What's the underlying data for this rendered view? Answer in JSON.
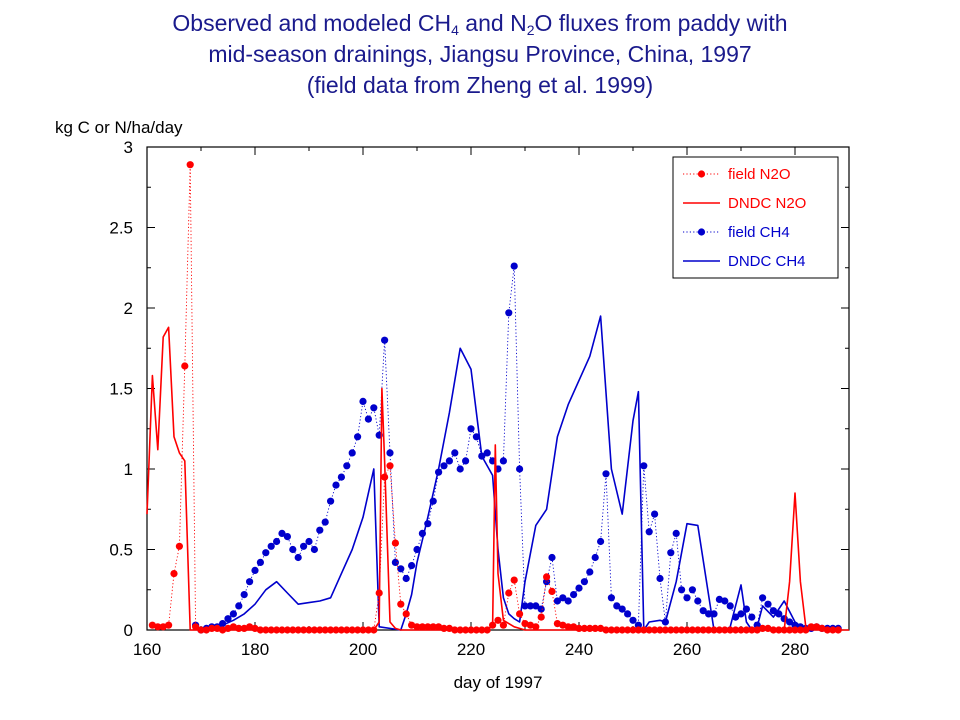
{
  "title": {
    "line1_pre": "Observed and modeled CH",
    "line1_sub1": "4",
    "line1_mid": " and N",
    "line1_sub2": "2",
    "line1_post": "O fluxes from paddy with",
    "line2": "mid-season drainings, Jiangsu Province, China, 1997",
    "line3": "(field data from Zheng et al. 1999)"
  },
  "chart_data": {
    "type": "line",
    "ylabel": "kg C or N/ha/day",
    "xlabel": "day of 1997",
    "xlim": [
      160,
      290
    ],
    "ylim": [
      0,
      3
    ],
    "xticks": [
      160,
      180,
      200,
      220,
      240,
      260,
      280
    ],
    "yticks": [
      0,
      0.5,
      1,
      1.5,
      2,
      2.5,
      3
    ],
    "ytick_labels": [
      "0",
      "0.5",
      "1",
      "1.5",
      "2",
      "2.5",
      "3"
    ],
    "legend_position": "top-right",
    "colors": {
      "n2o": "#ff0000",
      "ch4": "#0000cc",
      "title": "#1a1a8c"
    },
    "series": [
      {
        "name": "field N2O",
        "style": "dotted-markers",
        "x": [
          161,
          162,
          163,
          164,
          165,
          166,
          167,
          168,
          169,
          170,
          171,
          172,
          173,
          174,
          175,
          176,
          177,
          178,
          179,
          180,
          181,
          182,
          183,
          184,
          185,
          186,
          187,
          188,
          189,
          190,
          191,
          192,
          193,
          194,
          195,
          196,
          197,
          198,
          199,
          200,
          201,
          202,
          203,
          204,
          205,
          206,
          207,
          208,
          209,
          210,
          211,
          212,
          213,
          214,
          215,
          216,
          217,
          218,
          219,
          220,
          221,
          222,
          223,
          224,
          225,
          226,
          227,
          228,
          229,
          230,
          231,
          232,
          233,
          234,
          235,
          236,
          237,
          238,
          239,
          240,
          241,
          242,
          243,
          244,
          245,
          246,
          247,
          248,
          249,
          250,
          251,
          252,
          253,
          254,
          255,
          256,
          257,
          258,
          259,
          260,
          261,
          262,
          263,
          264,
          265,
          266,
          267,
          268,
          269,
          270,
          271,
          272,
          273,
          274,
          275,
          276,
          277,
          278,
          279,
          280,
          281,
          282,
          283,
          284,
          285,
          286,
          287,
          288
        ],
        "y": [
          0.03,
          0.02,
          0.02,
          0.03,
          0.35,
          0.52,
          1.64,
          2.89,
          0.02,
          0.0,
          0.0,
          0.01,
          0.01,
          0.0,
          0.01,
          0.02,
          0.01,
          0.01,
          0.02,
          0.01,
          0.0,
          0.0,
          0.0,
          0.0,
          0.0,
          0.0,
          0.0,
          0.0,
          0.0,
          0.0,
          0.0,
          0.0,
          0.0,
          0.0,
          0.0,
          0.0,
          0.0,
          0.0,
          0.0,
          0.0,
          0.0,
          0.0,
          0.23,
          0.95,
          1.02,
          0.54,
          0.16,
          0.1,
          0.03,
          0.02,
          0.02,
          0.02,
          0.02,
          0.02,
          0.01,
          0.01,
          0.0,
          0.0,
          0.0,
          0.0,
          0.0,
          0.0,
          0.0,
          0.03,
          0.06,
          0.03,
          0.23,
          0.31,
          0.1,
          0.04,
          0.03,
          0.02,
          0.08,
          0.33,
          0.24,
          0.04,
          0.03,
          0.02,
          0.02,
          0.01,
          0.01,
          0.01,
          0.01,
          0.01,
          0.0,
          0.0,
          0.0,
          0.0,
          0.0,
          0.0,
          0.0,
          0.0,
          0.0,
          0.0,
          0.0,
          0.0,
          0.0,
          0.0,
          0.0,
          0.0,
          0.0,
          0.0,
          0.0,
          0.0,
          0.0,
          0.0,
          0.0,
          0.0,
          0.0,
          0.0,
          0.0,
          0.0,
          0.0,
          0.01,
          0.01,
          0.0,
          0.0,
          0.0,
          0.0,
          0.0,
          0.0,
          0.0,
          0.02,
          0.02,
          0.01,
          0.0,
          0.0,
          0.0
        ]
      },
      {
        "name": "DNDC N2O",
        "style": "solid",
        "x": [
          160,
          161,
          162,
          163,
          164,
          165,
          166,
          167,
          168,
          169,
          170,
          200,
          202,
          203,
          203.5,
          204,
          205,
          206,
          207,
          222,
          223,
          224,
          224.5,
          225,
          226,
          227,
          228,
          229,
          230,
          231,
          278,
          279,
          280,
          281,
          282,
          283,
          284,
          290
        ],
        "y": [
          0.72,
          1.58,
          1.12,
          1.82,
          1.88,
          1.2,
          1.1,
          1.05,
          0.0,
          0.0,
          0.0,
          0.0,
          0.0,
          0.05,
          1.5,
          1.05,
          0.05,
          0.01,
          0.0,
          0.0,
          0.01,
          0.02,
          1.15,
          0.35,
          0.06,
          0.04,
          0.02,
          0.01,
          0.0,
          0.0,
          0.0,
          0.3,
          0.85,
          0.3,
          0.02,
          0.0,
          0.0,
          0.0
        ]
      },
      {
        "name": "field CH4",
        "style": "dotted-markers",
        "x": [
          169,
          170,
          171,
          172,
          173,
          174,
          175,
          176,
          177,
          178,
          179,
          180,
          181,
          182,
          183,
          184,
          185,
          186,
          187,
          188,
          189,
          190,
          191,
          192,
          193,
          194,
          195,
          196,
          197,
          198,
          199,
          200,
          201,
          202,
          203,
          204,
          205,
          206,
          207,
          208,
          209,
          210,
          211,
          212,
          213,
          214,
          215,
          216,
          217,
          218,
          219,
          220,
          221,
          222,
          223,
          224,
          225,
          226,
          227,
          228,
          229,
          230,
          231,
          232,
          233,
          234,
          235,
          236,
          237,
          238,
          239,
          240,
          241,
          242,
          243,
          244,
          245,
          246,
          247,
          248,
          249,
          250,
          251,
          252,
          253,
          254,
          255,
          256,
          257,
          258,
          259,
          260,
          261,
          262,
          263,
          264,
          265,
          266,
          267,
          268,
          269,
          270,
          271,
          272,
          273,
          274,
          275,
          276,
          277,
          278,
          279,
          280,
          281,
          282,
          283,
          284,
          285,
          286,
          287,
          288
        ],
        "y": [
          0.03,
          0.0,
          0.01,
          0.02,
          0.02,
          0.04,
          0.07,
          0.1,
          0.15,
          0.22,
          0.3,
          0.37,
          0.42,
          0.48,
          0.52,
          0.55,
          0.6,
          0.58,
          0.5,
          0.45,
          0.52,
          0.55,
          0.5,
          0.62,
          0.67,
          0.8,
          0.9,
          0.95,
          1.02,
          1.1,
          1.2,
          1.42,
          1.31,
          1.38,
          1.21,
          1.8,
          1.1,
          0.42,
          0.38,
          0.32,
          0.4,
          0.5,
          0.6,
          0.66,
          0.8,
          0.98,
          1.02,
          1.05,
          1.1,
          1.0,
          1.05,
          1.25,
          1.2,
          1.08,
          1.1,
          1.05,
          1.0,
          1.05,
          1.97,
          2.26,
          1.0,
          0.15,
          0.15,
          0.15,
          0.13,
          0.3,
          0.45,
          0.18,
          0.2,
          0.18,
          0.22,
          0.26,
          0.3,
          0.36,
          0.45,
          0.55,
          0.97,
          0.2,
          0.15,
          0.13,
          0.1,
          0.06,
          0.03,
          1.02,
          0.61,
          0.72,
          0.32,
          0.05,
          0.48,
          0.6,
          0.25,
          0.2,
          0.25,
          0.18,
          0.12,
          0.1,
          0.1,
          0.19,
          0.18,
          0.15,
          0.08,
          0.1,
          0.13,
          0.08,
          0.03,
          0.2,
          0.16,
          0.12,
          0.1,
          0.07,
          0.05,
          0.03,
          0.02,
          0.01,
          0.01,
          0.02,
          0.01,
          0.01,
          0.01,
          0.01
        ]
      },
      {
        "name": "DNDC CH4",
        "style": "solid",
        "x": [
          170,
          172,
          174,
          176,
          178,
          180,
          182,
          184,
          186,
          188,
          190,
          192,
          194,
          196,
          198,
          200,
          201,
          202,
          203,
          207,
          208,
          209,
          210,
          212,
          214,
          216,
          218,
          220,
          222,
          224,
          225,
          226,
          227,
          228,
          229,
          230,
          232,
          234,
          236,
          238,
          240,
          242,
          244,
          246,
          248,
          250,
          251,
          252,
          253,
          255,
          256,
          258,
          260,
          262,
          265,
          267,
          268,
          270,
          271,
          272,
          273,
          274,
          276,
          278,
          280,
          282
        ],
        "y": [
          0.0,
          0.01,
          0.03,
          0.06,
          0.1,
          0.16,
          0.25,
          0.3,
          0.23,
          0.16,
          0.17,
          0.18,
          0.2,
          0.35,
          0.5,
          0.7,
          0.85,
          1.0,
          0.02,
          0.0,
          0.1,
          0.22,
          0.42,
          0.7,
          1.0,
          1.35,
          1.75,
          1.62,
          1.08,
          0.96,
          0.5,
          0.2,
          0.1,
          0.07,
          0.05,
          0.3,
          0.65,
          0.75,
          1.2,
          1.4,
          1.55,
          1.7,
          1.95,
          1.0,
          0.72,
          1.3,
          1.48,
          0.0,
          0.05,
          0.06,
          0.05,
          0.3,
          0.66,
          0.65,
          0.0,
          0.0,
          0.02,
          0.28,
          0.05,
          0.0,
          0.02,
          0.15,
          0.08,
          0.18,
          0.05,
          0.0
        ]
      }
    ]
  }
}
